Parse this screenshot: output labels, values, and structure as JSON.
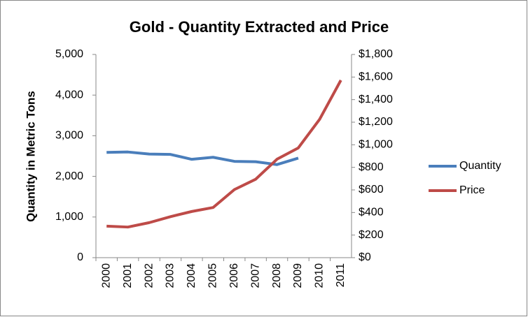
{
  "chart_data": {
    "type": "line",
    "title": "Gold - Quantity Extracted and Price",
    "y_label": "Quantity in Metric Tons",
    "categories": [
      "2000",
      "2001",
      "2002",
      "2003",
      "2004",
      "2005",
      "2006",
      "2007",
      "2008",
      "2009",
      "2010",
      "2011"
    ],
    "series": [
      {
        "name": "Quantity",
        "color": "#4a7ebb",
        "values": [
          2590,
          2600,
          2550,
          2540,
          2420,
          2470,
          2370,
          2360,
          2290,
          2450,
          null,
          null
        ]
      },
      {
        "name": "Price",
        "color": "#be4b48",
        "axis": "y2",
        "values": [
          279,
          271,
          310,
          363,
          409,
          444,
          603,
          695,
          872,
          972,
          1225,
          1572
        ]
      }
    ],
    "ylim": [
      0,
      5000
    ],
    "yticks": [
      0,
      {
        "value": 1000,
        "label": "1,000"
      },
      {
        "value": 2000,
        "label": "2,000"
      },
      {
        "value": 3000,
        "label": "3,000"
      },
      {
        "value": 4000,
        "label": "4,000"
      },
      {
        "value": 5000,
        "label": "5,000"
      }
    ],
    "y2lim": [
      0,
      1800
    ],
    "y2ticks": [
      {
        "value": 0,
        "label": "$0"
      },
      {
        "value": 200,
        "label": "$200"
      },
      {
        "value": 400,
        "label": "$400"
      },
      {
        "value": 600,
        "label": "$600"
      },
      {
        "value": 800,
        "label": "$800"
      },
      {
        "value": 1000,
        "label": "$1,000"
      },
      {
        "value": 1200,
        "label": "$1,200"
      },
      {
        "value": 1400,
        "label": "$1,400"
      },
      {
        "value": 1600,
        "label": "$1,600"
      },
      {
        "value": 1800,
        "label": "$1,800"
      }
    ],
    "legend": "right"
  }
}
